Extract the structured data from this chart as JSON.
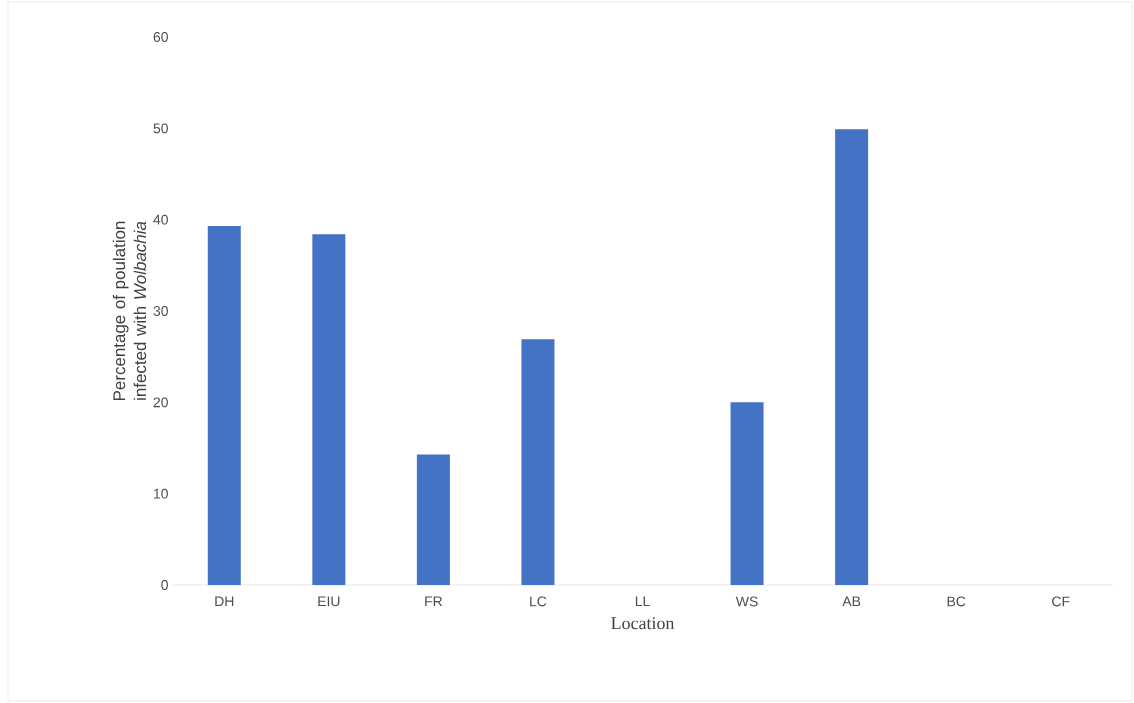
{
  "chart_data": {
    "type": "bar",
    "xlabel": "Location",
    "ylabel": "Percentage of poulation infected with *Wolbachia*",
    "categories": [
      "DH",
      "EIU",
      "FR",
      "LC",
      "LL",
      "WS",
      "AB",
      "BC",
      "CF"
    ],
    "values": [
      39.3,
      38.4,
      14.3,
      26.9,
      0,
      20.0,
      49.9,
      0,
      0
    ],
    "color": "#4472c4",
    "ylim": [
      0,
      60
    ],
    "yticks": [
      0,
      10,
      20,
      30,
      40,
      50,
      60
    ],
    "grid": false
  }
}
